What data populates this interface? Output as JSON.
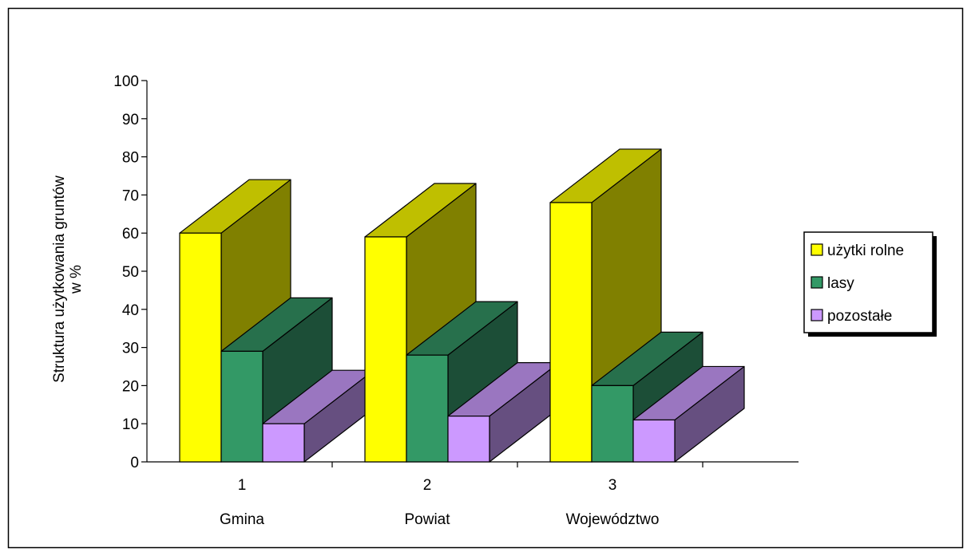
{
  "chart_data": {
    "type": "bar",
    "style": "3d-clustered",
    "ylabel_lines": [
      "Struktura użytkowania gruntów",
      "w %"
    ],
    "ylim": [
      0,
      100
    ],
    "yticks": [
      0,
      10,
      20,
      30,
      40,
      50,
      60,
      70,
      80,
      90,
      100
    ],
    "categories": [
      "1",
      "2",
      "3"
    ],
    "category_names": [
      "Gmina",
      "Powiat",
      "Województwo"
    ],
    "series": [
      {
        "name": "użytki rolne",
        "values": [
          60,
          59,
          68
        ],
        "color": "#ffff00",
        "side_color": "#808000",
        "top_color": "#bfbf00"
      },
      {
        "name": "lasy",
        "values": [
          29,
          28,
          20
        ],
        "color": "#339966",
        "side_color": "#1c4e37",
        "top_color": "#27704c"
      },
      {
        "name": "pozostałe",
        "values": [
          10,
          12,
          11
        ],
        "color": "#cc99ff",
        "side_color": "#664f80",
        "top_color": "#9a76c0"
      }
    ],
    "legend_position": "right",
    "grid": false
  }
}
